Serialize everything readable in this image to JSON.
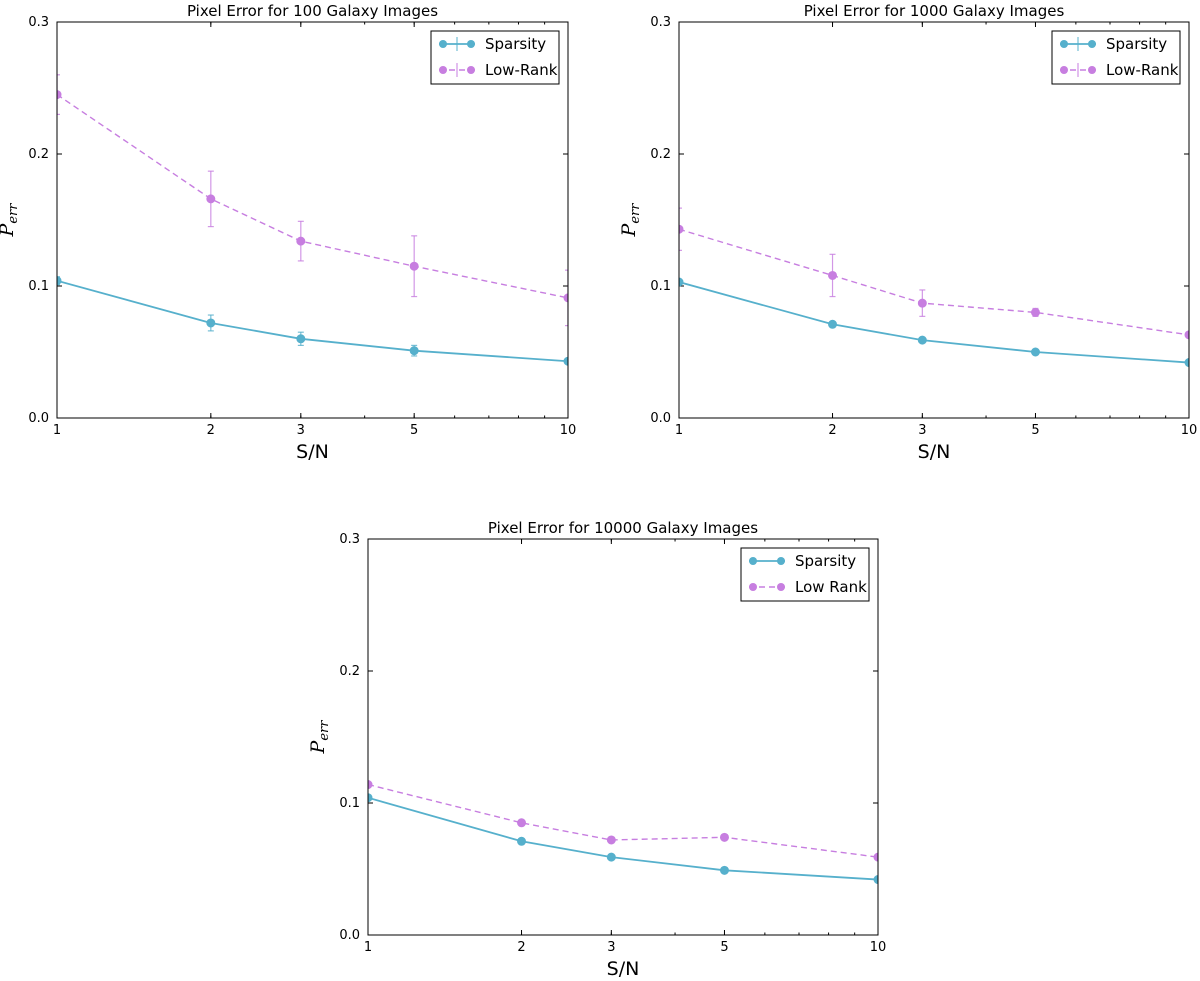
{
  "chart_data": [
    {
      "type": "line",
      "title": "Pixel Error for 100 Galaxy Images",
      "xlabel": "S/N",
      "ylabel_main": "P",
      "ylabel_sub": "err",
      "xscale": "log",
      "xlim": [
        1,
        10
      ],
      "ylim": [
        0,
        0.3
      ],
      "x_ticks": [
        "1",
        "2",
        "3",
        "5",
        "10"
      ],
      "y_ticks": [
        "0.0",
        "0.1",
        "0.2",
        "0.3"
      ],
      "x": [
        1,
        2,
        3,
        5,
        10
      ],
      "legend_position": "top-right",
      "series": [
        {
          "name": "Sparsity",
          "color": "#56b0cc",
          "dash": false,
          "values": [
            0.104,
            0.072,
            0.06,
            0.051,
            0.043
          ],
          "errors": [
            0.003,
            0.006,
            0.005,
            0.004,
            0.002
          ]
        },
        {
          "name": "Low-Rank",
          "color": "#c77ee0",
          "dash": true,
          "values": [
            0.245,
            0.166,
            0.134,
            0.115,
            0.091
          ],
          "errors": [
            0.015,
            0.021,
            0.015,
            0.023,
            0.021
          ]
        }
      ]
    },
    {
      "type": "line",
      "title": "Pixel Error for 1000 Galaxy Images",
      "xlabel": "S/N",
      "ylabel_main": "P",
      "ylabel_sub": "err",
      "xscale": "log",
      "xlim": [
        1,
        10
      ],
      "ylim": [
        0,
        0.3
      ],
      "x_ticks": [
        "1",
        "2",
        "3",
        "5",
        "10"
      ],
      "y_ticks": [
        "0.0",
        "0.1",
        "0.2",
        "0.3"
      ],
      "x": [
        1,
        2,
        3,
        5,
        10
      ],
      "legend_position": "top-right",
      "series": [
        {
          "name": "Sparsity",
          "color": "#56b0cc",
          "dash": false,
          "values": [
            0.103,
            0.071,
            0.059,
            0.05,
            0.042
          ],
          "errors": [
            0.002,
            0.001,
            0.001,
            0.001,
            0.001
          ]
        },
        {
          "name": "Low-Rank",
          "color": "#c77ee0",
          "dash": true,
          "values": [
            0.143,
            0.108,
            0.087,
            0.08,
            0.063
          ],
          "errors": [
            0.016,
            0.016,
            0.01,
            0.003,
            0.002
          ]
        }
      ]
    },
    {
      "type": "line",
      "title": "Pixel Error for 10000 Galaxy Images",
      "xlabel": "S/N",
      "ylabel_main": "P",
      "ylabel_sub": "err",
      "xscale": "log",
      "xlim": [
        1,
        10
      ],
      "ylim": [
        0,
        0.3
      ],
      "x_ticks": [
        "1",
        "2",
        "3",
        "5",
        "10"
      ],
      "y_ticks": [
        "0.0",
        "0.1",
        "0.2",
        "0.3"
      ],
      "x": [
        1,
        2,
        3,
        5,
        10
      ],
      "legend_position": "top-right",
      "series": [
        {
          "name": "Sparsity",
          "color": "#56b0cc",
          "dash": false,
          "values": [
            0.104,
            0.071,
            0.059,
            0.049,
            0.042
          ],
          "errors": [
            0,
            0,
            0,
            0,
            0
          ]
        },
        {
          "name": "Low Rank",
          "color": "#c77ee0",
          "dash": true,
          "values": [
            0.114,
            0.085,
            0.072,
            0.074,
            0.059
          ],
          "errors": [
            0,
            0,
            0,
            0,
            0
          ]
        }
      ]
    }
  ]
}
